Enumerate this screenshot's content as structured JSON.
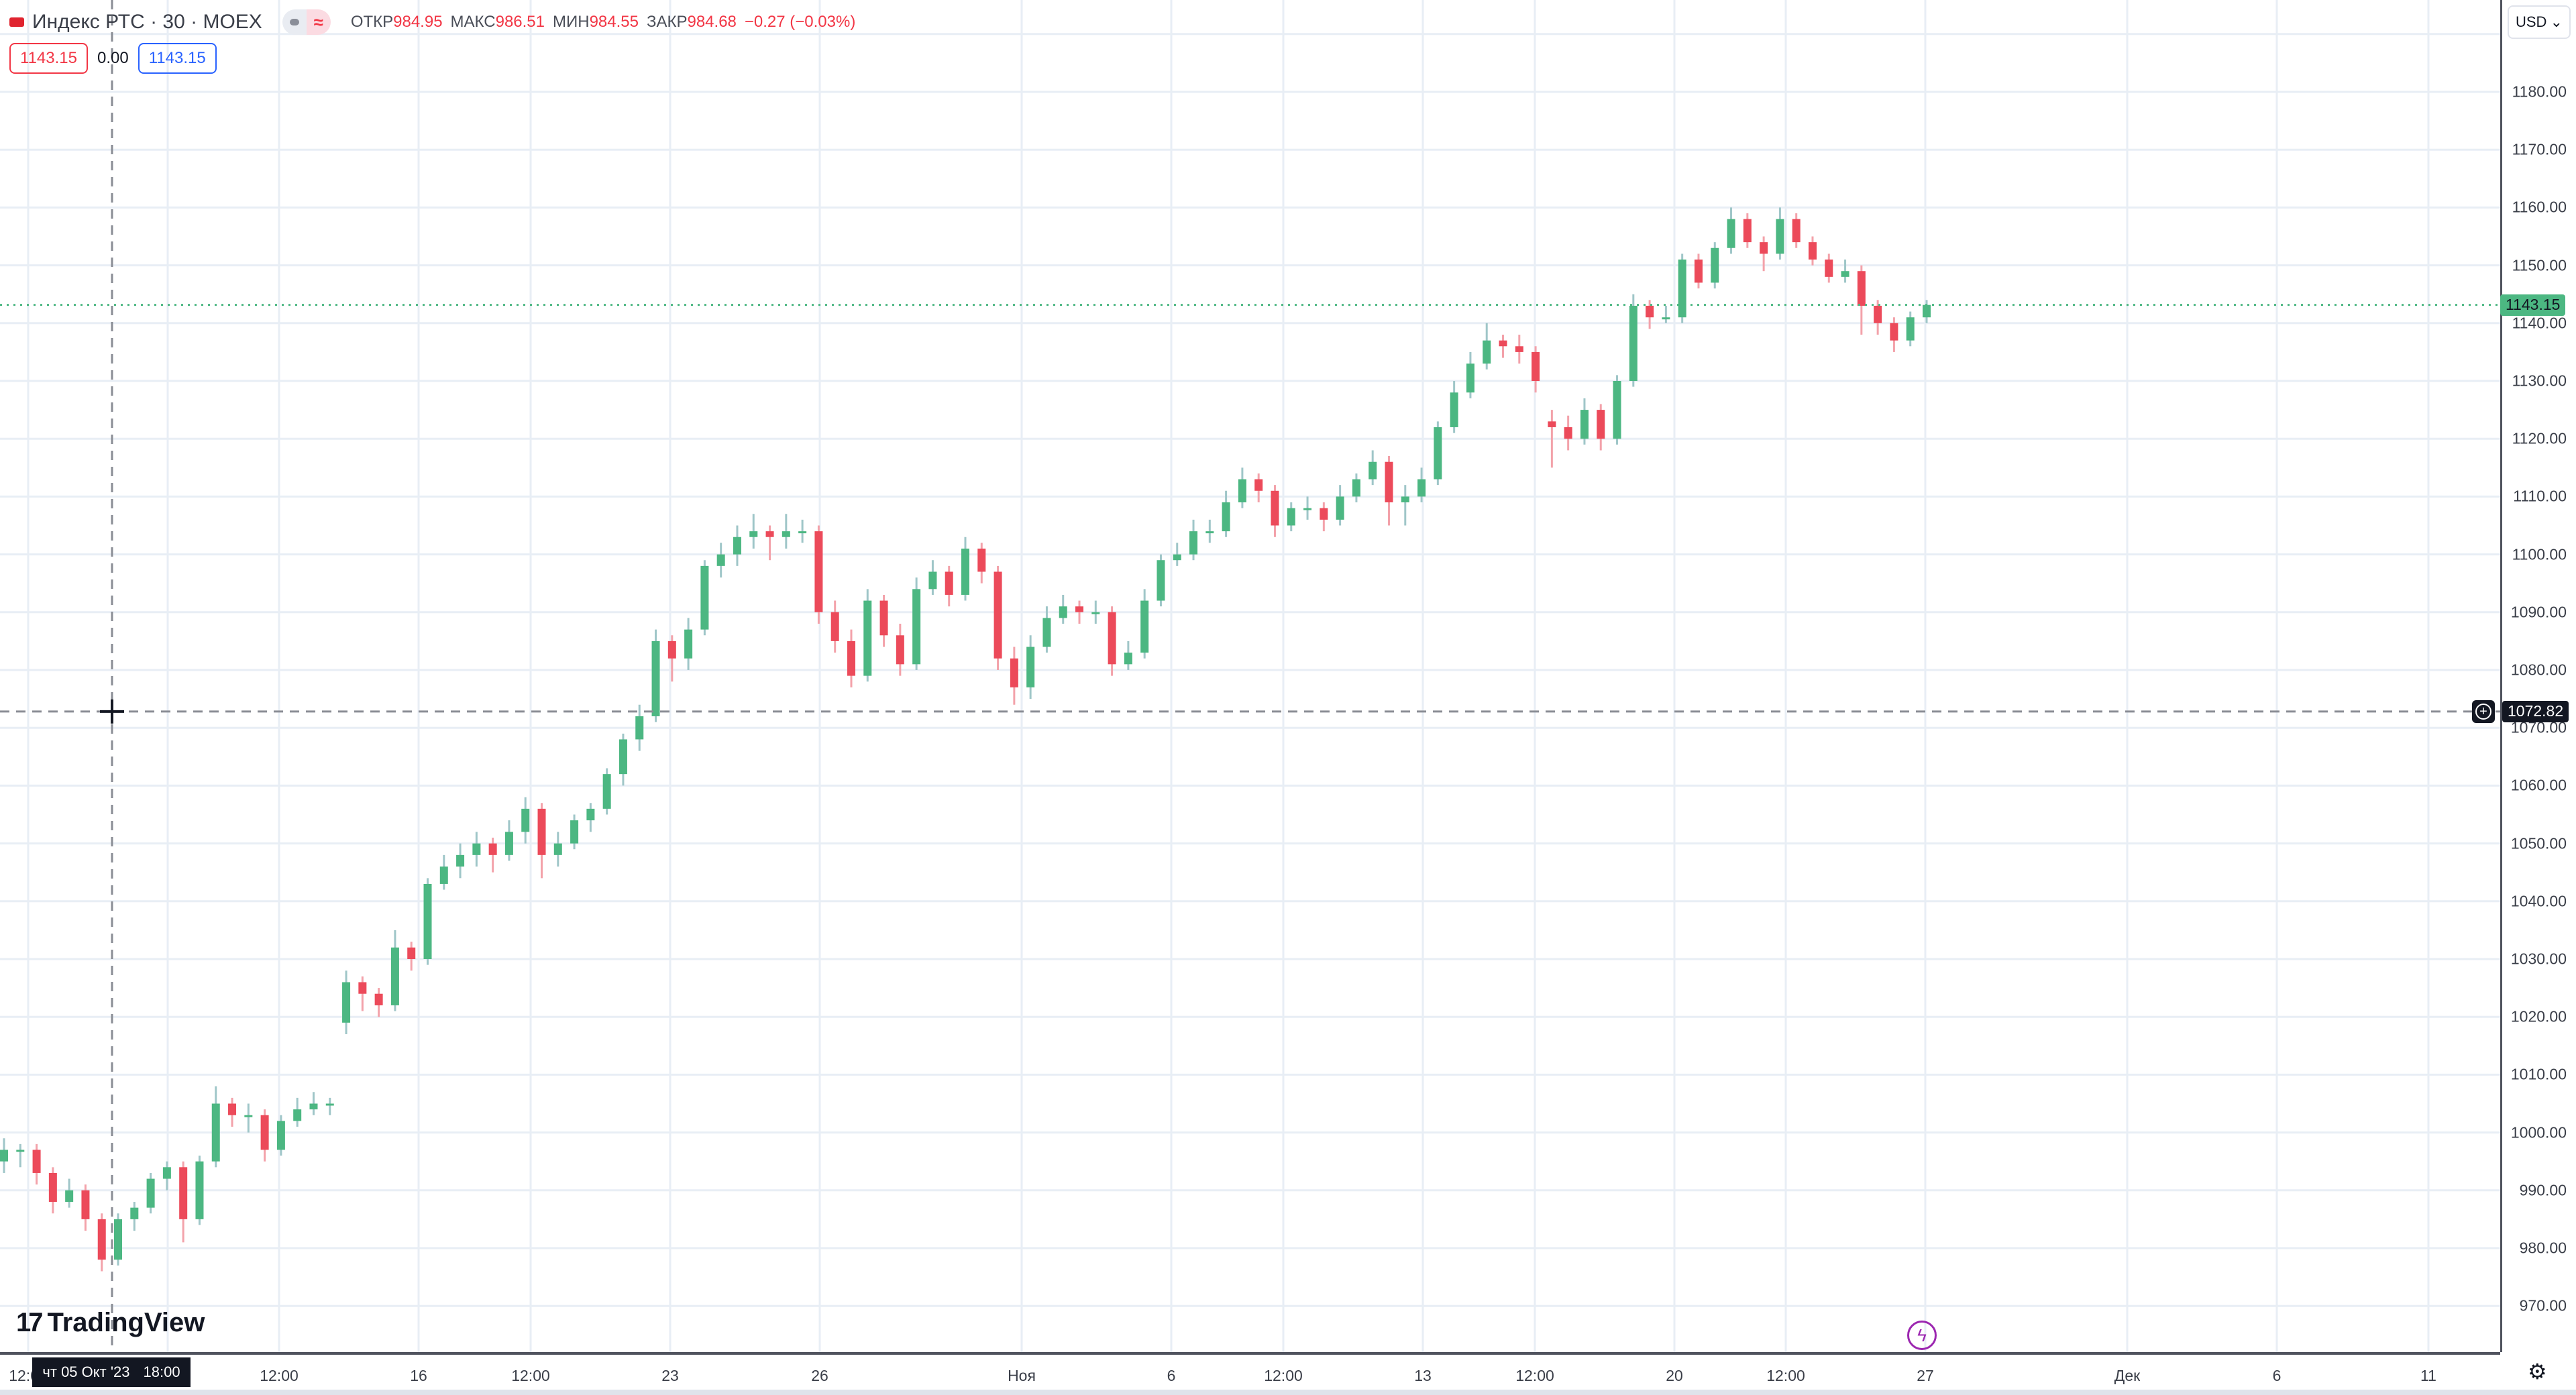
{
  "header": {
    "symbol": "Индекс РТС · 30 · MOEX",
    "open_label": "ОТКР",
    "open": "984.95",
    "high_label": "МАКС",
    "high": "986.51",
    "low_label": "МИН",
    "low": "984.55",
    "close_label": "ЗАКР",
    "close": "984.68",
    "change": "−0.27 (−0.03%)",
    "bid": "1143.15",
    "spread": "0.00",
    "ask": "1143.15"
  },
  "currency": "USD",
  "crosshair": {
    "price": "1072.82",
    "date": "чт 05 Окт '23",
    "time": "18:00"
  },
  "last_price": "1143.15",
  "brand": "TradingView",
  "colors": {
    "up": "#4cb782",
    "down": "#ec4a5a",
    "up_wick": "#9fc6c8",
    "down_wick": "#f3a2aa",
    "grid": "#e8eef5"
  },
  "chart_data": {
    "type": "candlestick",
    "title": "Индекс РТС · 30 · MOEX",
    "ylim": [
      965,
      1190
    ],
    "price_ticks": [
      "1180.00",
      "1170.00",
      "1160.00",
      "1150.00",
      "1140.00",
      "1130.00",
      "1120.00",
      "1110.00",
      "1100.00",
      "1090.00",
      "1080.00",
      "1070.00",
      "1060.00",
      "1050.00",
      "1040.00",
      "1030.00",
      "1020.00",
      "1010.00",
      "1000.00",
      "990.00",
      "980.00",
      "970.00"
    ],
    "time_ticks": [
      "12:00",
      "12:00",
      "16",
      "12:00",
      "23",
      "26",
      "Ноя",
      "6",
      "12:00",
      "13",
      "12:00",
      "20",
      "12:00",
      "27",
      "Дек",
      "6",
      "11"
    ],
    "candles": [
      [
        995,
        999,
        993,
        997
      ],
      [
        997,
        998,
        994,
        997
      ],
      [
        997,
        998,
        991,
        993
      ],
      [
        993,
        994,
        986,
        988
      ],
      [
        988,
        992,
        987,
        990
      ],
      [
        990,
        991,
        983,
        985
      ],
      [
        985,
        986,
        976,
        978
      ],
      [
        978,
        986,
        977,
        985
      ],
      [
        985,
        988,
        983,
        987
      ],
      [
        987,
        993,
        986,
        992
      ],
      [
        992,
        995,
        990,
        994
      ],
      [
        994,
        995,
        981,
        985
      ],
      [
        985,
        996,
        984,
        995
      ],
      [
        995,
        1008,
        994,
        1005
      ],
      [
        1005,
        1006,
        1001,
        1003
      ],
      [
        1003,
        1005,
        1000,
        1003
      ],
      [
        1003,
        1004,
        995,
        997
      ],
      [
        997,
        1003,
        996,
        1002
      ],
      [
        1002,
        1006,
        1001,
        1004
      ],
      [
        1004,
        1007,
        1003,
        1005
      ],
      [
        1005,
        1006,
        1003,
        1005
      ],
      [
        1019,
        1028,
        1017,
        1026
      ],
      [
        1026,
        1027,
        1021,
        1024
      ],
      [
        1024,
        1025,
        1020,
        1022
      ],
      [
        1022,
        1035,
        1021,
        1032
      ],
      [
        1032,
        1033,
        1028,
        1030
      ],
      [
        1030,
        1044,
        1029,
        1043
      ],
      [
        1043,
        1048,
        1042,
        1046
      ],
      [
        1046,
        1050,
        1044,
        1048
      ],
      [
        1048,
        1052,
        1046,
        1050
      ],
      [
        1050,
        1051,
        1045,
        1048
      ],
      [
        1048,
        1054,
        1047,
        1052
      ],
      [
        1052,
        1058,
        1050,
        1056
      ],
      [
        1056,
        1057,
        1044,
        1048
      ],
      [
        1048,
        1052,
        1046,
        1050
      ],
      [
        1050,
        1055,
        1049,
        1054
      ],
      [
        1054,
        1057,
        1052,
        1056
      ],
      [
        1056,
        1063,
        1055,
        1062
      ],
      [
        1062,
        1069,
        1060,
        1068
      ],
      [
        1068,
        1074,
        1066,
        1072
      ],
      [
        1072,
        1087,
        1071,
        1085
      ],
      [
        1085,
        1086,
        1078,
        1082
      ],
      [
        1082,
        1089,
        1080,
        1087
      ],
      [
        1087,
        1099,
        1086,
        1098
      ],
      [
        1098,
        1102,
        1096,
        1100
      ],
      [
        1100,
        1105,
        1098,
        1103
      ],
      [
        1103,
        1107,
        1101,
        1104
      ],
      [
        1104,
        1105,
        1099,
        1103
      ],
      [
        1103,
        1107,
        1101,
        1104
      ],
      [
        1104,
        1106,
        1102,
        1104
      ],
      [
        1104,
        1105,
        1088,
        1090
      ],
      [
        1090,
        1092,
        1083,
        1085
      ],
      [
        1085,
        1087,
        1077,
        1079
      ],
      [
        1079,
        1094,
        1078,
        1092
      ],
      [
        1092,
        1093,
        1084,
        1086
      ],
      [
        1086,
        1088,
        1079,
        1081
      ],
      [
        1081,
        1096,
        1080,
        1094
      ],
      [
        1094,
        1099,
        1093,
        1097
      ],
      [
        1097,
        1098,
        1091,
        1093
      ],
      [
        1093,
        1103,
        1092,
        1101
      ],
      [
        1101,
        1102,
        1095,
        1097
      ],
      [
        1097,
        1098,
        1080,
        1082
      ],
      [
        1082,
        1084,
        1074,
        1077
      ],
      [
        1077,
        1086,
        1075,
        1084
      ],
      [
        1084,
        1091,
        1083,
        1089
      ],
      [
        1089,
        1093,
        1088,
        1091
      ],
      [
        1091,
        1092,
        1088,
        1090
      ],
      [
        1090,
        1092,
        1088,
        1090
      ],
      [
        1090,
        1091,
        1079,
        1081
      ],
      [
        1081,
        1085,
        1080,
        1083
      ],
      [
        1083,
        1094,
        1082,
        1092
      ],
      [
        1092,
        1100,
        1091,
        1099
      ],
      [
        1099,
        1102,
        1098,
        1100
      ],
      [
        1100,
        1106,
        1099,
        1104
      ],
      [
        1104,
        1106,
        1102,
        1104
      ],
      [
        1104,
        1111,
        1103,
        1109
      ],
      [
        1109,
        1115,
        1108,
        1113
      ],
      [
        1113,
        1114,
        1109,
        1111
      ],
      [
        1111,
        1112,
        1103,
        1105
      ],
      [
        1105,
        1109,
        1104,
        1108
      ],
      [
        1108,
        1110,
        1106,
        1108
      ],
      [
        1108,
        1109,
        1104,
        1106
      ],
      [
        1106,
        1112,
        1105,
        1110
      ],
      [
        1110,
        1114,
        1109,
        1113
      ],
      [
        1113,
        1118,
        1112,
        1116
      ],
      [
        1116,
        1117,
        1105,
        1109
      ],
      [
        1109,
        1112,
        1105,
        1110
      ],
      [
        1110,
        1115,
        1109,
        1113
      ],
      [
        1113,
        1123,
        1112,
        1122
      ],
      [
        1122,
        1130,
        1121,
        1128
      ],
      [
        1128,
        1135,
        1127,
        1133
      ],
      [
        1133,
        1140,
        1132,
        1137
      ],
      [
        1137,
        1138,
        1134,
        1136
      ],
      [
        1136,
        1138,
        1133,
        1135
      ],
      [
        1135,
        1136,
        1128,
        1130
      ],
      [
        1123,
        1125,
        1115,
        1122
      ],
      [
        1122,
        1124,
        1118,
        1120
      ],
      [
        1120,
        1127,
        1119,
        1125
      ],
      [
        1125,
        1126,
        1118,
        1120
      ],
      [
        1120,
        1131,
        1119,
        1130
      ],
      [
        1130,
        1145,
        1129,
        1143
      ],
      [
        1143,
        1144,
        1139,
        1141
      ],
      [
        1141,
        1143,
        1140,
        1141
      ],
      [
        1141,
        1152,
        1140,
        1151
      ],
      [
        1151,
        1152,
        1146,
        1147
      ],
      [
        1147,
        1154,
        1146,
        1153
      ],
      [
        1153,
        1160,
        1152,
        1158
      ],
      [
        1158,
        1159,
        1153,
        1154
      ],
      [
        1154,
        1155,
        1149,
        1152
      ],
      [
        1152,
        1160,
        1151,
        1158
      ],
      [
        1158,
        1159,
        1153,
        1154
      ],
      [
        1154,
        1155,
        1150,
        1151
      ],
      [
        1151,
        1152,
        1147,
        1148
      ],
      [
        1148,
        1151,
        1147,
        1149
      ],
      [
        1149,
        1150,
        1138,
        1143
      ],
      [
        1143,
        1144,
        1138,
        1140
      ],
      [
        1140,
        1141,
        1135,
        1137
      ],
      [
        1137,
        1142,
        1136,
        1141
      ],
      [
        1141,
        1144,
        1140,
        1143.15
      ]
    ]
  }
}
